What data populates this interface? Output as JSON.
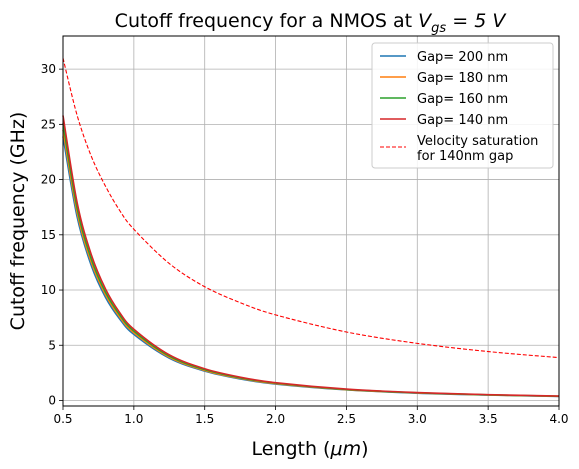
{
  "chart_data": {
    "type": "line",
    "title_prefix": "Cutoff frequency for a NMOS at ",
    "title_math_base": "V",
    "title_math_sub": "gs",
    "title_math_rest": " = 5 V",
    "xlabel_prefix": "Length (",
    "xlabel_math": "μm",
    "xlabel_suffix": ")",
    "ylabel": "Cutoff frequency (GHz)",
    "xlim": [
      0.5,
      4.0
    ],
    "ylim": [
      -0.5,
      33
    ],
    "xticks": [
      0.5,
      1.0,
      1.5,
      2.0,
      2.5,
      3.0,
      3.5,
      4.0
    ],
    "xtick_labels": [
      "0.5",
      "1.0",
      "1.5",
      "2.0",
      "2.5",
      "3.0",
      "3.5",
      "4.0"
    ],
    "yticks": [
      0,
      5,
      10,
      15,
      20,
      25,
      30
    ],
    "ytick_labels": [
      "0",
      "5",
      "10",
      "15",
      "20",
      "25",
      "30"
    ],
    "grid": true,
    "legend_position": "top-right",
    "series": [
      {
        "name": "Gap= 200 nm",
        "color": "#1f77b4",
        "style": "solid",
        "x": [
          0.5,
          0.6,
          0.7,
          0.8,
          0.9,
          1.0,
          1.25,
          1.5,
          1.75,
          2.0,
          2.5,
          3.0,
          3.5,
          4.0
        ],
        "y": [
          23.9,
          16.6,
          12.2,
          9.34,
          7.38,
          5.98,
          3.83,
          2.66,
          1.95,
          1.49,
          0.96,
          0.66,
          0.49,
          0.37
        ]
      },
      {
        "name": "Gap= 180 nm",
        "color": "#ff7f0e",
        "style": "solid",
        "x": [
          0.5,
          0.6,
          0.7,
          0.8,
          0.9,
          1.0,
          1.25,
          1.5,
          1.75,
          2.0,
          2.5,
          3.0,
          3.5,
          4.0
        ],
        "y": [
          24.5,
          17.0,
          12.5,
          9.57,
          7.56,
          6.13,
          3.92,
          2.72,
          2.0,
          1.53,
          0.98,
          0.68,
          0.5,
          0.38
        ]
      },
      {
        "name": "Gap= 160 nm",
        "color": "#2ca02c",
        "style": "solid",
        "x": [
          0.5,
          0.6,
          0.7,
          0.8,
          0.9,
          1.0,
          1.25,
          1.5,
          1.75,
          2.0,
          2.5,
          3.0,
          3.5,
          4.0
        ],
        "y": [
          25.1,
          17.4,
          12.8,
          9.8,
          7.75,
          6.28,
          4.02,
          2.79,
          2.05,
          1.57,
          1.0,
          0.7,
          0.51,
          0.39
        ]
      },
      {
        "name": "Gap= 140 nm",
        "color": "#d62728",
        "style": "solid",
        "x": [
          0.5,
          0.6,
          0.7,
          0.8,
          0.9,
          1.0,
          1.25,
          1.5,
          1.75,
          2.0,
          2.5,
          3.0,
          3.5,
          4.0
        ],
        "y": [
          25.8,
          17.9,
          13.2,
          10.1,
          7.96,
          6.45,
          4.13,
          2.87,
          2.11,
          1.61,
          1.03,
          0.72,
          0.53,
          0.4
        ]
      },
      {
        "name": "Velocity saturation\nfor 140nm gap",
        "color": "#ff0000",
        "style": "dashed",
        "x": [
          0.5,
          0.6,
          0.7,
          0.8,
          0.9,
          1.0,
          1.25,
          1.5,
          1.75,
          2.0,
          2.5,
          3.0,
          3.5,
          4.0
        ],
        "y": [
          31.0,
          25.8,
          22.1,
          19.4,
          17.2,
          15.5,
          12.4,
          10.3,
          8.86,
          7.75,
          6.2,
          5.17,
          4.43,
          3.88
        ]
      }
    ]
  }
}
